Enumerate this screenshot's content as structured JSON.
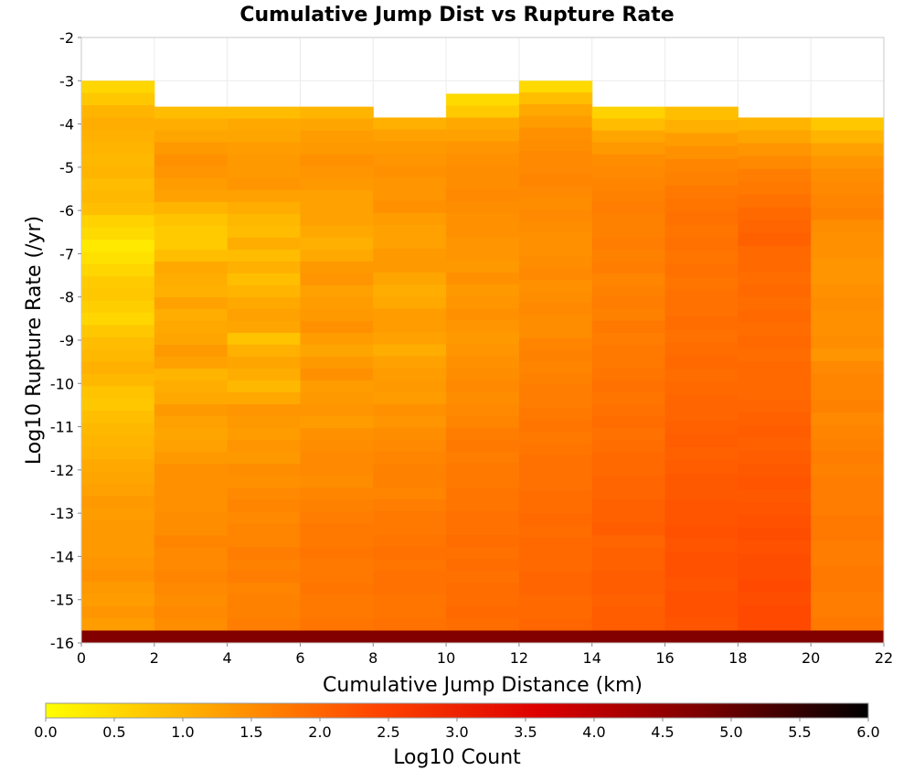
{
  "chart_data": {
    "type": "heatmap",
    "title": "Cumulative Jump Dist vs Rupture Rate",
    "xlabel": "Cumulative Jump Distance (km)",
    "ylabel": "Log10 Rupture Rate (/yr)",
    "xlim": [
      0,
      22
    ],
    "ylim": [
      -16,
      -2
    ],
    "x_ticks": [
      "0",
      "2",
      "4",
      "6",
      "8",
      "10",
      "12",
      "14",
      "16",
      "18",
      "20",
      "22"
    ],
    "y_ticks": [
      "-2",
      "-3",
      "-4",
      "-5",
      "-6",
      "-7",
      "-8",
      "-9",
      "-10",
      "-11",
      "-12",
      "-13",
      "-14",
      "-15",
      "-16"
    ],
    "x_bin_edges": [
      0,
      2,
      4,
      6,
      8,
      10,
      12,
      14,
      16,
      18,
      20,
      22
    ],
    "y_bin_width": 0.2857,
    "grid": true,
    "colorbar": {
      "label": "Log10 Count",
      "range": [
        0,
        6
      ],
      "ticks": [
        "0.0",
        "0.5",
        "1.0",
        "1.5",
        "2.0",
        "2.5",
        "3.0",
        "3.5",
        "4.0",
        "4.5",
        "5.0",
        "5.5",
        "6.0"
      ],
      "colors": [
        "#ffff00",
        "#ffa500",
        "#ff4500",
        "#dd0000",
        "#7a0000",
        "#000000"
      ]
    },
    "column_top_log_rate": [
      -3.0,
      -3.6,
      -3.6,
      -3.6,
      -3.85,
      -3.3,
      -3.0,
      -3.6,
      -3.6,
      -3.85,
      -3.85
    ],
    "column_values_top_to_bottom": [
      [
        0.55,
        0.75,
        1.0,
        1.1,
        1.05,
        1.0,
        0.95,
        1.0,
        0.9,
        0.95,
        0.85,
        0.6,
        0.5,
        0.3,
        0.4,
        0.55,
        0.7,
        0.75,
        0.65,
        0.55,
        0.75,
        0.9,
        0.95,
        1.05,
        0.95,
        0.8,
        0.75,
        0.85,
        0.95,
        1.0,
        1.05,
        1.15,
        1.2,
        1.25,
        1.35,
        1.3,
        1.35,
        1.35,
        1.35,
        1.4,
        1.45,
        1.35,
        1.3,
        1.4,
        1.3
      ],
      [
        0.9,
        1.1,
        1.2,
        1.35,
        1.45,
        1.4,
        1.3,
        1.25,
        1.0,
        0.8,
        0.7,
        0.7,
        0.85,
        1.15,
        1.1,
        1.05,
        1.25,
        1.1,
        1.15,
        1.2,
        1.35,
        1.25,
        1.0,
        1.1,
        1.15,
        1.35,
        1.25,
        1.2,
        1.25,
        1.35,
        1.45,
        1.45,
        1.45,
        1.45,
        1.5,
        1.5,
        1.6,
        1.55,
        1.55,
        1.6,
        1.55,
        1.5,
        1.55,
        1.5
      ],
      [
        0.9,
        1.15,
        1.2,
        1.3,
        1.35,
        1.35,
        1.4,
        1.25,
        1.1,
        0.95,
        0.9,
        1.1,
        0.9,
        1.05,
        0.85,
        1.0,
        1.15,
        1.25,
        1.2,
        0.8,
        1.05,
        1.2,
        1.1,
        0.95,
        1.15,
        1.4,
        1.35,
        1.3,
        1.4,
        1.35,
        1.5,
        1.45,
        1.55,
        1.6,
        1.55,
        1.6,
        1.6,
        1.7,
        1.65,
        1.7,
        1.6,
        1.65,
        1.65,
        1.7
      ],
      [
        1.0,
        1.2,
        1.3,
        1.35,
        1.45,
        1.4,
        1.35,
        1.25,
        1.25,
        1.25,
        1.15,
        1.05,
        1.15,
        1.35,
        1.4,
        1.25,
        1.3,
        1.35,
        1.45,
        1.3,
        1.2,
        1.35,
        1.45,
        1.3,
        1.35,
        1.4,
        1.3,
        1.45,
        1.5,
        1.55,
        1.55,
        1.5,
        1.6,
        1.65,
        1.7,
        1.75,
        1.75,
        1.8,
        1.75,
        1.75,
        1.8,
        1.75,
        1.75,
        1.8
      ],
      [
        1.05,
        1.25,
        1.35,
        1.4,
        1.45,
        1.4,
        1.4,
        1.45,
        1.3,
        1.25,
        1.25,
        1.35,
        1.35,
        1.2,
        1.1,
        1.15,
        1.3,
        1.3,
        1.25,
        1.1,
        1.25,
        1.3,
        1.35,
        1.3,
        1.45,
        1.4,
        1.5,
        1.55,
        1.6,
        1.65,
        1.65,
        1.6,
        1.7,
        1.75,
        1.75,
        1.8,
        1.85,
        1.8,
        1.85,
        1.85,
        1.8,
        1.8,
        1.85
      ],
      [
        0.5,
        0.7,
        1.15,
        1.25,
        1.4,
        1.45,
        1.5,
        1.5,
        1.55,
        1.5,
        1.45,
        1.45,
        1.4,
        1.4,
        1.35,
        1.45,
        1.35,
        1.4,
        1.45,
        1.4,
        1.35,
        1.4,
        1.45,
        1.5,
        1.55,
        1.5,
        1.55,
        1.6,
        1.7,
        1.75,
        1.7,
        1.75,
        1.75,
        1.8,
        1.8,
        1.85,
        1.85,
        1.9,
        1.85,
        1.9,
        1.85,
        1.9,
        1.9,
        1.95,
        1.9
      ],
      [
        0.5,
        0.85,
        1.15,
        1.3,
        1.45,
        1.5,
        1.55,
        1.55,
        1.6,
        1.55,
        1.5,
        1.55,
        1.5,
        1.45,
        1.45,
        1.5,
        1.55,
        1.45,
        1.5,
        1.55,
        1.5,
        1.5,
        1.6,
        1.65,
        1.6,
        1.65,
        1.7,
        1.7,
        1.75,
        1.8,
        1.75,
        1.8,
        1.85,
        1.85,
        1.85,
        1.9,
        1.9,
        1.95,
        1.9,
        1.95,
        1.95,
        1.95,
        2.0,
        2.0,
        1.95,
        1.95,
        2.0
      ],
      [
        0.6,
        0.9,
        1.2,
        1.35,
        1.5,
        1.55,
        1.6,
        1.65,
        1.7,
        1.65,
        1.65,
        1.7,
        1.65,
        1.7,
        1.6,
        1.65,
        1.7,
        1.65,
        1.75,
        1.7,
        1.75,
        1.75,
        1.8,
        1.85,
        1.8,
        1.85,
        1.9,
        1.85,
        1.9,
        1.95,
        1.95,
        2.0,
        2.0,
        2.05,
        2.05,
        2.1,
        2.0,
        2.05,
        2.05,
        2.1,
        2.1,
        2.05,
        2.1,
        2.1
      ],
      [
        0.85,
        1.05,
        1.3,
        1.45,
        1.6,
        1.65,
        1.75,
        1.8,
        1.85,
        1.8,
        1.85,
        1.8,
        1.85,
        1.8,
        1.85,
        1.85,
        1.9,
        1.85,
        1.9,
        1.95,
        1.9,
        1.95,
        2.0,
        2.0,
        2.05,
        2.1,
        2.05,
        2.1,
        2.15,
        2.15,
        2.2,
        2.2,
        2.25,
        2.2,
        2.25,
        2.25,
        2.2,
        2.25,
        2.25,
        2.2
      ],
      [
        1.0,
        1.2,
        1.4,
        1.55,
        1.7,
        1.75,
        1.85,
        1.95,
        2.0,
        2.05,
        1.95,
        1.95,
        1.9,
        1.95,
        1.9,
        1.95,
        1.9,
        1.95,
        1.9,
        1.95,
        1.95,
        1.95,
        2.0,
        2.05,
        2.1,
        2.05,
        2.1,
        2.15,
        2.2,
        2.15,
        2.2,
        2.25,
        2.3,
        2.25,
        2.3,
        2.3,
        2.35,
        2.3,
        2.35,
        2.35
      ],
      [
        0.75,
        1.0,
        1.25,
        1.4,
        1.5,
        1.55,
        1.6,
        1.65,
        1.5,
        1.45,
        1.45,
        1.4,
        1.4,
        1.45,
        1.5,
        1.45,
        1.45,
        1.5,
        1.4,
        1.55,
        1.6,
        1.6,
        1.65,
        1.55,
        1.6,
        1.65,
        1.7,
        1.65,
        1.7,
        1.7,
        1.7,
        1.75,
        1.75,
        1.7,
        1.7,
        1.75,
        1.75,
        1.7,
        1.7,
        1.75
      ]
    ],
    "bottom_row": {
      "log_rate": -16,
      "value": 4.7
    }
  }
}
